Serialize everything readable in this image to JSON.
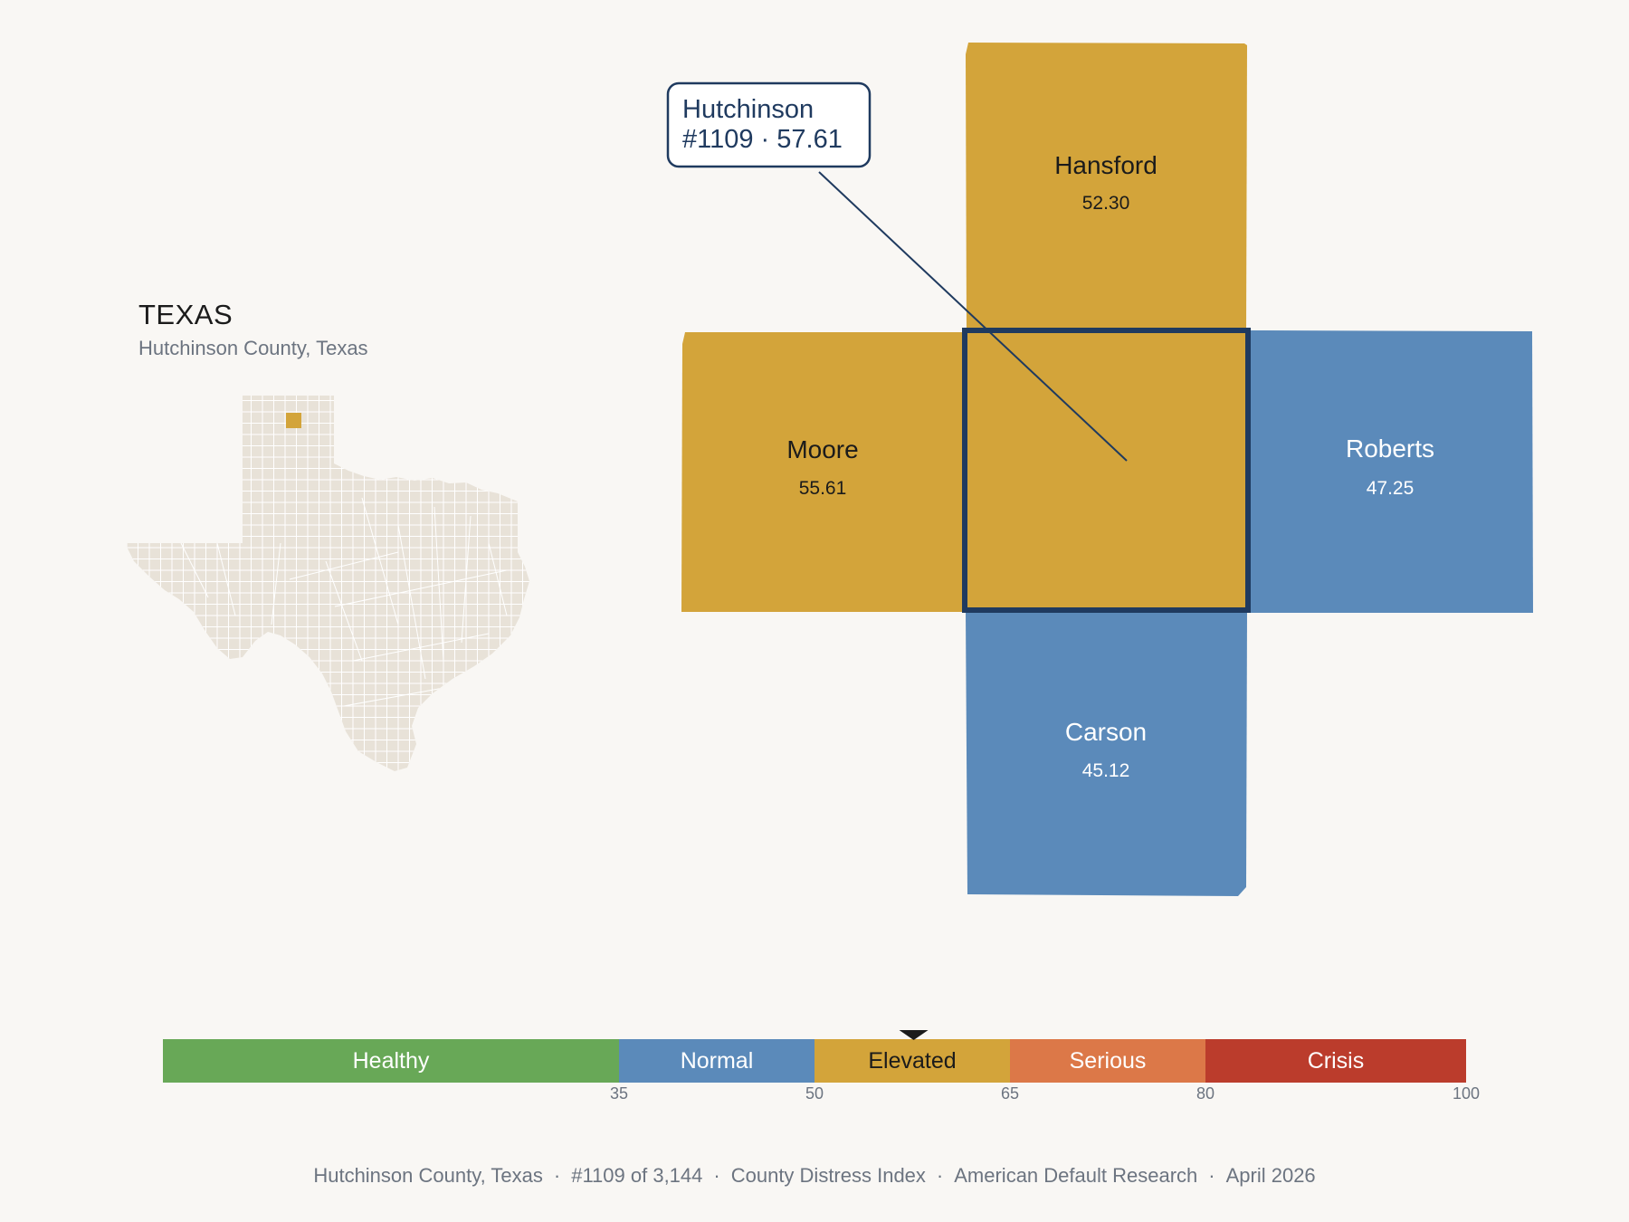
{
  "state": {
    "name": "TEXAS",
    "subtitle": "Hutchinson County, Texas"
  },
  "colors": {
    "elevated": "#d3a43a",
    "normal": "#5b8aba",
    "outline": "#1f3a5f",
    "locator_fill": "#e8e2d8"
  },
  "focus": {
    "name": "Hutchinson",
    "rank_value": "#1109 · 57.61",
    "category": "Elevated"
  },
  "neighbors": [
    {
      "id": "hansford",
      "name": "Hansford",
      "value": "52.30",
      "category": "Elevated"
    },
    {
      "id": "moore",
      "name": "Moore",
      "value": "55.61",
      "category": "Elevated"
    },
    {
      "id": "roberts",
      "name": "Roberts",
      "value": "47.25",
      "category": "Normal"
    },
    {
      "id": "carson",
      "name": "Carson",
      "value": "45.12",
      "category": "Normal"
    }
  ],
  "scale": {
    "min": 0,
    "max": 100,
    "marker_value": 57.61,
    "segments": [
      {
        "label": "Healthy",
        "from": 0,
        "to": 35,
        "color": "#68a857",
        "text_color": "#ffffff"
      },
      {
        "label": "Normal",
        "from": 35,
        "to": 50,
        "color": "#5b8aba",
        "text_color": "#ffffff"
      },
      {
        "label": "Elevated",
        "from": 50,
        "to": 65,
        "color": "#d3a43a",
        "text_color": "#1b1b1b"
      },
      {
        "label": "Serious",
        "from": 65,
        "to": 80,
        "color": "#dc7848",
        "text_color": "#ffffff"
      },
      {
        "label": "Crisis",
        "from": 80,
        "to": 100,
        "color": "#bb3c2c",
        "text_color": "#ffffff"
      }
    ],
    "ticks": [
      "35",
      "50",
      "65",
      "80",
      "100"
    ]
  },
  "footer": {
    "county": "Hutchinson County, Texas",
    "rank": "#1109 of 3,144",
    "index": "County Distress Index",
    "org": "American Default Research",
    "date": "April 2026"
  }
}
